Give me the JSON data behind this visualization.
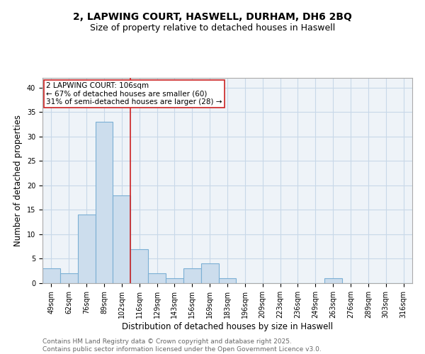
{
  "title_line1": "2, LAPWING COURT, HASWELL, DURHAM, DH6 2BQ",
  "title_line2": "Size of property relative to detached houses in Haswell",
  "xlabel": "Distribution of detached houses by size in Haswell",
  "ylabel": "Number of detached properties",
  "categories": [
    "49sqm",
    "62sqm",
    "76sqm",
    "89sqm",
    "102sqm",
    "116sqm",
    "129sqm",
    "143sqm",
    "156sqm",
    "169sqm",
    "183sqm",
    "196sqm",
    "209sqm",
    "223sqm",
    "236sqm",
    "249sqm",
    "263sqm",
    "276sqm",
    "289sqm",
    "303sqm",
    "316sqm"
  ],
  "values": [
    3,
    2,
    14,
    33,
    18,
    7,
    2,
    1,
    3,
    4,
    1,
    0,
    0,
    0,
    0,
    0,
    1,
    0,
    0,
    0,
    0
  ],
  "bar_color": "#ccdded",
  "bar_edge_color": "#7bafd4",
  "grid_color": "#c8d8e8",
  "background_color": "#eef3f8",
  "vline_color": "#cc2222",
  "annotation_text": "2 LAPWING COURT: 106sqm\n← 67% of detached houses are smaller (60)\n31% of semi-detached houses are larger (28) →",
  "ylim": [
    0,
    42
  ],
  "yticks": [
    0,
    5,
    10,
    15,
    20,
    25,
    30,
    35,
    40
  ],
  "footer_line1": "Contains HM Land Registry data © Crown copyright and database right 2025.",
  "footer_line2": "Contains public sector information licensed under the Open Government Licence v3.0.",
  "title_fontsize": 10,
  "subtitle_fontsize": 9,
  "label_fontsize": 8.5,
  "tick_fontsize": 7,
  "annotation_fontsize": 7.5,
  "footer_fontsize": 6.5,
  "vline_bar_index": 4
}
